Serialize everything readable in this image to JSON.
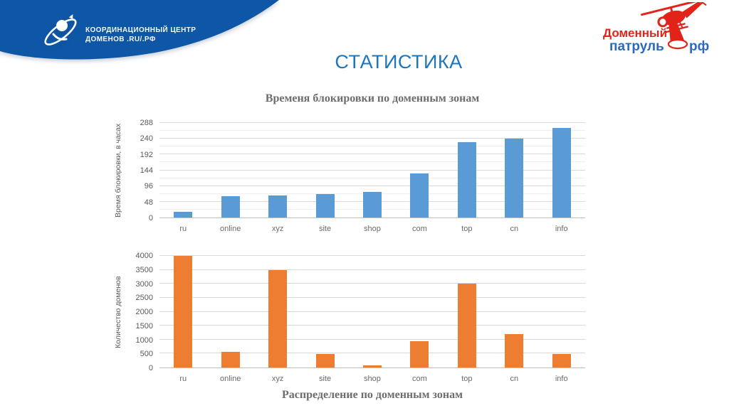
{
  "slide": {
    "title": "СТАТИСТИКА"
  },
  "kc_logo": {
    "line1": "КООРДИНАЦИОННЫЙ ЦЕНТР",
    "line2": "ДОМЕНОВ .RU/.РФ"
  },
  "patrol_logo": {
    "word1": "Доменный",
    "word2": "патруль",
    "word3": "рф"
  },
  "colors": {
    "blob_blue": "#0d57a6",
    "title_blue": "#1d76bd",
    "bar_blue": "#5b9bd5",
    "bar_orange": "#ed7d31",
    "logo_red": "#e2231a",
    "logo_blue": "#2b6abf"
  },
  "chart_data": [
    {
      "type": "bar",
      "title": "Временя блокировки по доменным зонам",
      "ylabel": "Время блокировки, в часах",
      "xlabel": "",
      "categories": [
        "ru",
        "online",
        "xyz",
        "site",
        "shop",
        "com",
        "top",
        "cn",
        "info"
      ],
      "values": [
        17,
        64,
        67,
        72,
        79,
        134,
        230,
        240,
        272
      ],
      "ylim": [
        0,
        288
      ],
      "ytick_step": 48,
      "minor_grid_step": 24,
      "bar_color": "#5b9bd5",
      "grid": true,
      "legend": false,
      "title_position": "top"
    },
    {
      "type": "bar",
      "title": "Распределение по доменным зонам",
      "ylabel": "Количество доменов",
      "xlabel": "",
      "categories": [
        "ru",
        "online",
        "xyz",
        "site",
        "shop",
        "com",
        "top",
        "cn",
        "info"
      ],
      "values": [
        4000,
        550,
        3480,
        480,
        80,
        940,
        3000,
        1200,
        480
      ],
      "ylim": [
        0,
        4000
      ],
      "ytick_step": 500,
      "bar_color": "#ed7d31",
      "grid": true,
      "legend": false,
      "title_position": "bottom"
    }
  ]
}
